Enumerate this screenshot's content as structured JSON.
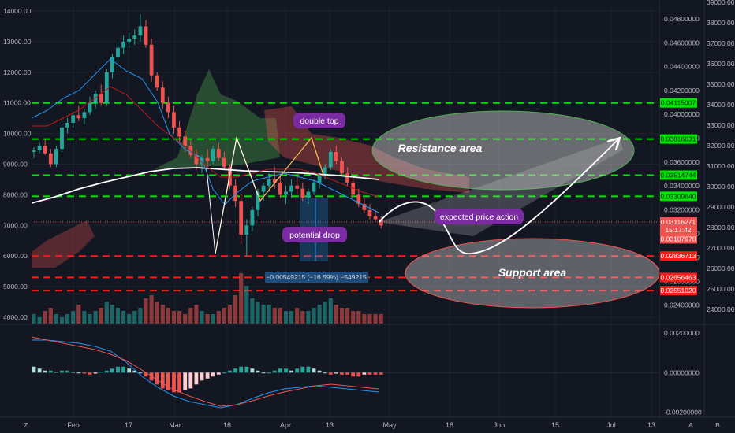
{
  "chart_data": [
    {
      "type": "candlestick",
      "x_ticks": [
        "Feb",
        "17",
        "Mar",
        "16",
        "Apr",
        "13",
        "May",
        "18",
        "Jun",
        "15",
        "Jul",
        "13"
      ],
      "left_axis_ticks": [
        "14000.00",
        "13000.00",
        "12000.00",
        "11000.00",
        "10000.00",
        "9000.00",
        "8000.00",
        "7000.00",
        "6000.00",
        "5000.00",
        "4000.00"
      ],
      "far_right_axis_ticks": [
        "39000.00",
        "38000.00",
        "37000.00",
        "36000.00",
        "35000.00",
        "34000.00",
        "33000.00",
        "32000.00",
        "31000.00",
        "30000.00",
        "29000.00",
        "28000.00",
        "27000.00",
        "26000.00",
        "25000.00",
        "24000.00"
      ],
      "right_axis_ticks": [
        "0.04800000",
        "0.04600000",
        "0.04400000",
        "0.04200000",
        "0.04000000",
        "0.03800000",
        "0.03600000",
        "0.03400000",
        "0.03200000",
        "0.03000000",
        "0.02800000",
        "0.02600000",
        "0.02400000"
      ],
      "price_scale": {
        "min": 3700,
        "max": 14200
      },
      "levels": [
        {
          "label": "0.04115007",
          "price": 11000,
          "color": "#00e600"
        },
        {
          "label": "0.03816031",
          "price": 9820,
          "color": "#00e600"
        },
        {
          "label": "0.03514744",
          "price": 8640,
          "color": "#00e600"
        },
        {
          "label": "0.03309640",
          "price": 7950,
          "color": "#00e600"
        },
        {
          "label": "0.02836713",
          "price": 6000,
          "color": "#ff1a1a"
        },
        {
          "label": "0.02656463",
          "price": 5300,
          "color": "#ff1a1a"
        },
        {
          "label": "0.02551020",
          "price": 4870,
          "color": "#ff1a1a"
        }
      ],
      "price_tags": [
        {
          "label": "0.03116271",
          "price": 7110,
          "color": "#ef5350"
        },
        {
          "label": "15:17:42",
          "price": 6850,
          "color": "#ef5350"
        },
        {
          "label": "0.03107978",
          "price": 6560,
          "color": "#ef5350"
        }
      ],
      "candles": [
        [
          9400,
          9550,
          9200,
          9450
        ],
        [
          9450,
          9700,
          9350,
          9600
        ],
        [
          9600,
          9800,
          9300,
          9350
        ],
        [
          9350,
          9500,
          8900,
          9000
        ],
        [
          9000,
          9600,
          8900,
          9500
        ],
        [
          9500,
          10300,
          9400,
          10200
        ],
        [
          10200,
          10500,
          10000,
          10350
        ],
        [
          10350,
          10700,
          10200,
          10600
        ],
        [
          10600,
          10900,
          10400,
          10500
        ],
        [
          10500,
          10800,
          10300,
          10700
        ],
        [
          10700,
          11200,
          10600,
          11000
        ],
        [
          11000,
          11400,
          10800,
          11300
        ],
        [
          11300,
          11600,
          10900,
          11000
        ],
        [
          11000,
          12100,
          10900,
          12000
        ],
        [
          12000,
          12600,
          11800,
          12500
        ],
        [
          12500,
          13000,
          12300,
          12800
        ],
        [
          12800,
          13200,
          12600,
          13000
        ],
        [
          13000,
          13300,
          12800,
          13100
        ],
        [
          13100,
          13400,
          12900,
          13200
        ],
        [
          13200,
          13900,
          13000,
          13500
        ],
        [
          13500,
          13700,
          12800,
          12900
        ],
        [
          12900,
          13100,
          11700,
          11900
        ],
        [
          11900,
          12000,
          11400,
          11500
        ],
        [
          11500,
          11700,
          10800,
          11000
        ],
        [
          11000,
          11200,
          10500,
          10700
        ],
        [
          10700,
          10900,
          10000,
          10200
        ],
        [
          10200,
          10400,
          9700,
          9900
        ],
        [
          9900,
          10100,
          9400,
          9600
        ],
        [
          9600,
          9800,
          9200,
          9300
        ],
        [
          9300,
          9500,
          8800,
          9000
        ],
        [
          9000,
          9300,
          8700,
          9200
        ],
        [
          9200,
          9500,
          8900,
          9100
        ],
        [
          9100,
          9600,
          9000,
          9500
        ],
        [
          9500,
          9700,
          9100,
          9200
        ],
        [
          9200,
          9400,
          8800,
          8900
        ],
        [
          8900,
          9000,
          8200,
          8300
        ],
        [
          8300,
          8500,
          7600,
          7800
        ],
        [
          7800,
          8000,
          6400,
          6700
        ],
        [
          6700,
          7200,
          6000,
          7000
        ],
        [
          7000,
          7600,
          6800,
          7500
        ],
        [
          7500,
          8200,
          7300,
          8100
        ],
        [
          8100,
          8400,
          7800,
          8300
        ],
        [
          8300,
          8700,
          8100,
          8500
        ],
        [
          8500,
          8900,
          8200,
          8400
        ],
        [
          8400,
          8600,
          7900,
          8000
        ],
        [
          8000,
          8300,
          7700,
          8100
        ],
        [
          8100,
          8500,
          7900,
          8300
        ],
        [
          8300,
          8600,
          8000,
          8200
        ],
        [
          8200,
          8400,
          7800,
          7900
        ],
        [
          7900,
          8200,
          7700,
          8100
        ],
        [
          8100,
          8500,
          8000,
          8400
        ],
        [
          8400,
          8700,
          8200,
          8600
        ],
        [
          8600,
          9000,
          8500,
          8900
        ],
        [
          8900,
          9500,
          8800,
          9400
        ],
        [
          9400,
          9600,
          9000,
          9100
        ],
        [
          9100,
          9200,
          8600,
          8700
        ],
        [
          8700,
          8900,
          8300,
          8400
        ],
        [
          8400,
          8600,
          7900,
          8000
        ],
        [
          8000,
          8200,
          7600,
          7700
        ],
        [
          7700,
          7900,
          7400,
          7500
        ],
        [
          7500,
          7700,
          7200,
          7300
        ],
        [
          7300,
          7500,
          7100,
          7200
        ],
        [
          7200,
          7300,
          6900,
          7000
        ]
      ],
      "resistance_label": "Resistance area",
      "support_label": "Support area",
      "annotations": [
        "double top",
        "potential drop",
        "expected price action"
      ],
      "measure_label": "−0.00549215 (−16.59%) −549215"
    },
    {
      "type": "macd",
      "right_axis_ticks": [
        "0.00200000",
        "0.00000000",
        "-0.00200000"
      ],
      "histogram": [
        0.0003,
        0.0002,
        0.0001,
        0.0001,
        5e-05,
        0.0001,
        0.0001,
        5e-05,
        0,
        -5e-05,
        -0.0001,
        -5e-05,
        5e-05,
        0.0001,
        0.0002,
        0.0003,
        0.0003,
        0.0002,
        0.0001,
        0,
        -0.0002,
        -0.0004,
        -0.0006,
        -0.0008,
        -0.0009,
        -0.001,
        -0.001,
        -0.0009,
        -0.0008,
        -0.0006,
        -0.0004,
        -0.0003,
        -0.0002,
        -0.0001,
        0,
        0.0001,
        0.0002,
        0.0003,
        0.0003,
        0.0002,
        0.0001,
        0,
        0,
        0.0001,
        0.0002,
        0.0002,
        0.0001,
        0.0002,
        0.0003,
        0.0003,
        0.0002,
        0.0001,
        0,
        -0.0001,
        -5e-05,
        -0.0001,
        -0.0001,
        -0.0002,
        -0.0002,
        -0.0001,
        -0.0001,
        -0.0001,
        -0.0001
      ],
      "ylim": [
        -0.0021,
        0.0022
      ]
    }
  ],
  "bottom_bar": {
    "left_glyph": "Z",
    "right_glyph_a": "A",
    "right_glyph_b": "B"
  }
}
